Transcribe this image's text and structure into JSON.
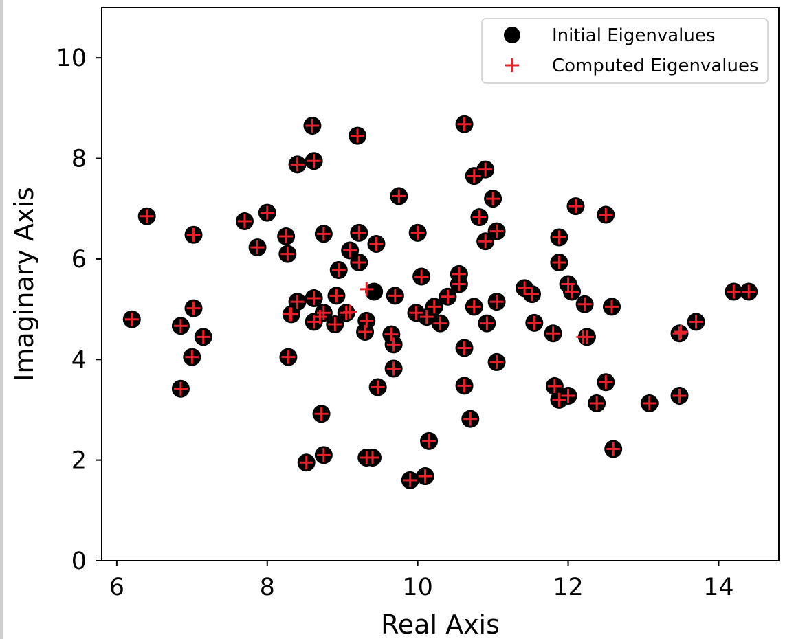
{
  "chart_data": {
    "type": "scatter",
    "xlabel": "Real Axis",
    "ylabel": "Imaginary Axis",
    "xlim": [
      5.8,
      14.8
    ],
    "ylim": [
      0,
      11
    ],
    "xticks": [
      6,
      8,
      10,
      12,
      14
    ],
    "yticks": [
      0,
      2,
      4,
      6,
      8,
      10
    ],
    "grid": false,
    "legend_position": "top-right",
    "series": [
      {
        "name": "Initial Eigenvalues",
        "marker": "circle",
        "color": "#000000",
        "points": [
          [
            6.2,
            4.8
          ],
          [
            6.4,
            6.85
          ],
          [
            6.85,
            3.42
          ],
          [
            6.85,
            4.67
          ],
          [
            7.0,
            4.05
          ],
          [
            7.02,
            6.48
          ],
          [
            7.02,
            5.02
          ],
          [
            7.15,
            4.45
          ],
          [
            7.7,
            6.75
          ],
          [
            7.87,
            6.23
          ],
          [
            8.0,
            6.92
          ],
          [
            8.25,
            6.45
          ],
          [
            8.27,
            6.1
          ],
          [
            8.28,
            4.05
          ],
          [
            8.32,
            4.9
          ],
          [
            8.4,
            7.88
          ],
          [
            8.4,
            5.15
          ],
          [
            8.52,
            1.95
          ],
          [
            8.6,
            8.65
          ],
          [
            8.62,
            7.95
          ],
          [
            8.62,
            5.22
          ],
          [
            8.62,
            4.75
          ],
          [
            8.72,
            2.92
          ],
          [
            8.75,
            6.5
          ],
          [
            8.75,
            2.1
          ],
          [
            8.75,
            4.93
          ],
          [
            8.9,
            4.7
          ],
          [
            8.92,
            5.27
          ],
          [
            8.95,
            5.78
          ],
          [
            9.05,
            4.93
          ],
          [
            9.1,
            6.17
          ],
          [
            9.2,
            8.45
          ],
          [
            9.22,
            6.52
          ],
          [
            9.22,
            5.93
          ],
          [
            9.3,
            4.55
          ],
          [
            9.32,
            4.77
          ],
          [
            9.32,
            2.05
          ],
          [
            9.4,
            2.05
          ],
          [
            9.42,
            5.35
          ],
          [
            9.45,
            6.3
          ],
          [
            9.47,
            3.45
          ],
          [
            9.65,
            4.5
          ],
          [
            9.68,
            3.82
          ],
          [
            9.7,
            5.27
          ],
          [
            9.68,
            4.3
          ],
          [
            9.75,
            7.25
          ],
          [
            9.9,
            1.6
          ],
          [
            9.98,
            4.93
          ],
          [
            10.0,
            6.52
          ],
          [
            10.05,
            5.65
          ],
          [
            10.1,
            1.68
          ],
          [
            10.12,
            4.85
          ],
          [
            10.15,
            2.38
          ],
          [
            10.22,
            5.05
          ],
          [
            10.3,
            4.72
          ],
          [
            10.4,
            5.25
          ],
          [
            10.55,
            5.7
          ],
          [
            10.55,
            5.5
          ],
          [
            10.62,
            8.68
          ],
          [
            10.62,
            4.23
          ],
          [
            10.62,
            3.48
          ],
          [
            10.7,
            2.82
          ],
          [
            10.75,
            7.65
          ],
          [
            10.75,
            5.05
          ],
          [
            10.82,
            6.83
          ],
          [
            10.9,
            7.78
          ],
          [
            10.9,
            6.35
          ],
          [
            10.92,
            4.72
          ],
          [
            11.0,
            7.2
          ],
          [
            11.05,
            6.55
          ],
          [
            11.05,
            5.15
          ],
          [
            11.05,
            3.95
          ],
          [
            11.42,
            5.42
          ],
          [
            11.52,
            5.3
          ],
          [
            11.55,
            4.73
          ],
          [
            11.8,
            4.52
          ],
          [
            11.82,
            3.47
          ],
          [
            11.88,
            6.43
          ],
          [
            11.88,
            5.93
          ],
          [
            11.88,
            3.2
          ],
          [
            12.0,
            3.28
          ],
          [
            12.0,
            5.5
          ],
          [
            12.05,
            5.35
          ],
          [
            12.1,
            7.05
          ],
          [
            12.22,
            5.1
          ],
          [
            12.25,
            4.45
          ],
          [
            12.38,
            3.13
          ],
          [
            12.5,
            6.88
          ],
          [
            12.5,
            3.55
          ],
          [
            12.58,
            5.05
          ],
          [
            12.6,
            2.22
          ],
          [
            13.08,
            3.13
          ],
          [
            13.48,
            4.52
          ],
          [
            13.48,
            3.28
          ],
          [
            13.7,
            4.75
          ],
          [
            14.2,
            5.35
          ],
          [
            14.4,
            5.35
          ]
        ]
      },
      {
        "name": "Computed Eigenvalues",
        "marker": "plus",
        "color": "#e8222a",
        "points": [
          [
            6.2,
            4.8
          ],
          [
            6.4,
            6.85
          ],
          [
            6.85,
            3.42
          ],
          [
            6.85,
            4.67
          ],
          [
            7.0,
            4.05
          ],
          [
            7.02,
            6.48
          ],
          [
            7.02,
            5.02
          ],
          [
            7.15,
            4.45
          ],
          [
            7.7,
            6.75
          ],
          [
            7.87,
            6.23
          ],
          [
            8.0,
            6.92
          ],
          [
            8.25,
            6.45
          ],
          [
            8.27,
            6.1
          ],
          [
            8.28,
            4.05
          ],
          [
            8.32,
            4.9
          ],
          [
            8.4,
            7.88
          ],
          [
            8.4,
            5.15
          ],
          [
            8.52,
            1.95
          ],
          [
            8.6,
            8.65
          ],
          [
            8.62,
            7.95
          ],
          [
            8.62,
            5.22
          ],
          [
            8.62,
            4.75
          ],
          [
            8.72,
            2.92
          ],
          [
            8.75,
            6.5
          ],
          [
            8.75,
            2.1
          ],
          [
            8.75,
            4.93
          ],
          [
            8.9,
            4.7
          ],
          [
            8.92,
            5.27
          ],
          [
            8.95,
            5.78
          ],
          [
            9.05,
            4.93
          ],
          [
            9.1,
            6.17
          ],
          [
            9.2,
            8.45
          ],
          [
            9.22,
            6.52
          ],
          [
            9.22,
            5.93
          ],
          [
            9.3,
            4.55
          ],
          [
            9.32,
            4.77
          ],
          [
            9.32,
            2.05
          ],
          [
            9.4,
            2.05
          ],
          [
            9.32,
            5.4
          ],
          [
            9.45,
            6.3
          ],
          [
            9.47,
            3.45
          ],
          [
            9.65,
            4.5
          ],
          [
            9.68,
            3.82
          ],
          [
            9.7,
            5.27
          ],
          [
            9.68,
            4.3
          ],
          [
            9.75,
            7.25
          ],
          [
            9.9,
            1.6
          ],
          [
            9.98,
            4.93
          ],
          [
            10.0,
            6.52
          ],
          [
            10.05,
            5.65
          ],
          [
            10.1,
            1.68
          ],
          [
            10.12,
            4.85
          ],
          [
            10.15,
            2.38
          ],
          [
            10.22,
            5.05
          ],
          [
            10.3,
            4.72
          ],
          [
            10.4,
            5.25
          ],
          [
            10.55,
            5.7
          ],
          [
            10.55,
            5.5
          ],
          [
            10.62,
            8.68
          ],
          [
            10.62,
            4.23
          ],
          [
            10.62,
            3.48
          ],
          [
            10.7,
            2.82
          ],
          [
            10.75,
            7.65
          ],
          [
            10.75,
            5.05
          ],
          [
            10.82,
            6.83
          ],
          [
            10.9,
            7.78
          ],
          [
            10.9,
            6.35
          ],
          [
            10.92,
            4.72
          ],
          [
            11.0,
            7.2
          ],
          [
            11.05,
            6.55
          ],
          [
            11.05,
            5.15
          ],
          [
            11.05,
            3.95
          ],
          [
            11.42,
            5.42
          ],
          [
            11.52,
            5.3
          ],
          [
            11.55,
            4.73
          ],
          [
            11.8,
            4.52
          ],
          [
            11.82,
            3.47
          ],
          [
            11.88,
            6.43
          ],
          [
            11.88,
            5.93
          ],
          [
            11.88,
            3.2
          ],
          [
            12.0,
            3.28
          ],
          [
            12.0,
            5.5
          ],
          [
            12.05,
            5.35
          ],
          [
            12.1,
            7.05
          ],
          [
            12.22,
            5.1
          ],
          [
            12.25,
            4.45
          ],
          [
            12.38,
            3.13
          ],
          [
            12.5,
            6.88
          ],
          [
            12.5,
            3.55
          ],
          [
            12.58,
            5.05
          ],
          [
            12.6,
            2.22
          ],
          [
            13.08,
            3.13
          ],
          [
            13.48,
            4.52
          ],
          [
            13.48,
            3.28
          ],
          [
            13.7,
            4.75
          ],
          [
            14.2,
            5.35
          ],
          [
            14.4,
            5.35
          ],
          [
            8.3,
            4.9
          ],
          [
            8.7,
            4.85
          ],
          [
            9.1,
            4.95
          ],
          [
            13.5,
            4.55
          ],
          [
            12.2,
            4.45
          ]
        ]
      }
    ]
  }
}
